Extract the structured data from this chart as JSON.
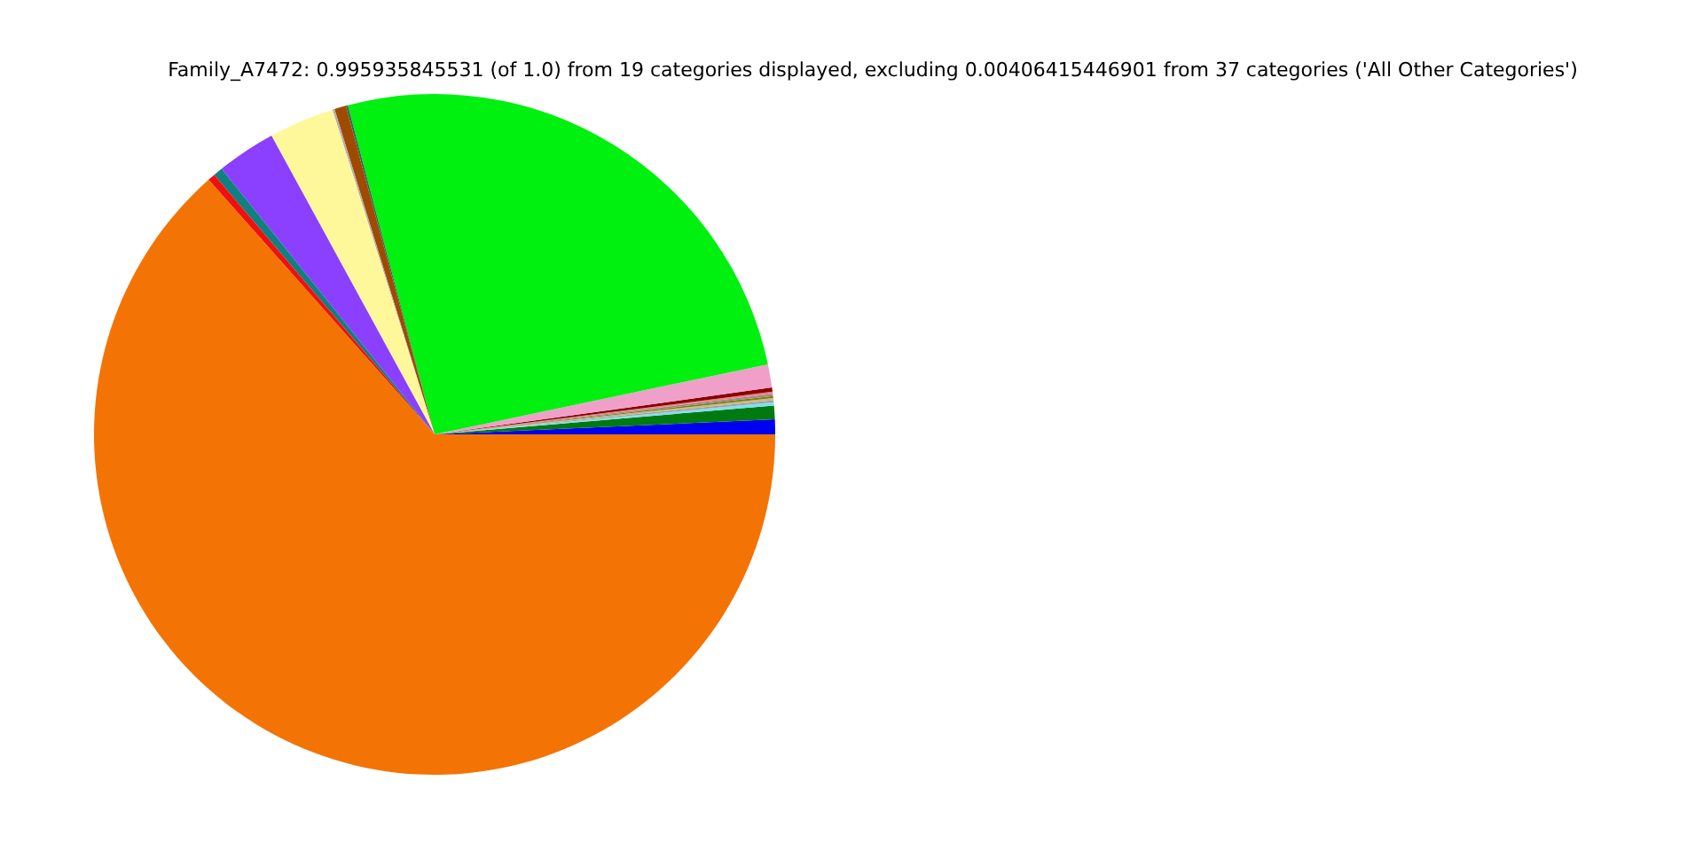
{
  "chart_data": {
    "type": "pie",
    "title": "Family_A7472: 0.995935845531 (of 1.0) from 19 categories displayed, excluding 0.00406415446901 from 37 categories ('All Other Categories')",
    "categories": [
      null,
      null,
      null,
      null,
      null,
      null,
      null,
      null,
      null,
      null,
      null,
      null,
      null,
      null,
      null,
      null,
      null,
      null,
      null
    ],
    "values": [
      0.7,
      0.65,
      0.15,
      0.1,
      0.1,
      0.1,
      0.1,
      0.1,
      0.2,
      1.1,
      25.8,
      0.1,
      0.55,
      0.1,
      3.1,
      2.8,
      0.45,
      0.35,
      63.45
    ],
    "colors": [
      "#0000f0",
      "#007a10",
      "#80e0f0",
      "#a0a0a0",
      "#c8b890",
      "#808000",
      "#909090",
      "#f08080",
      "#8b0000",
      "#f0a0c8",
      "#00f010",
      "#2f6f4f",
      "#a04a00",
      "#b0b0b0",
      "#fff89a",
      "#8b40ff",
      "#108080",
      "#f01010",
      "#f47305"
    ],
    "legend": false
  }
}
